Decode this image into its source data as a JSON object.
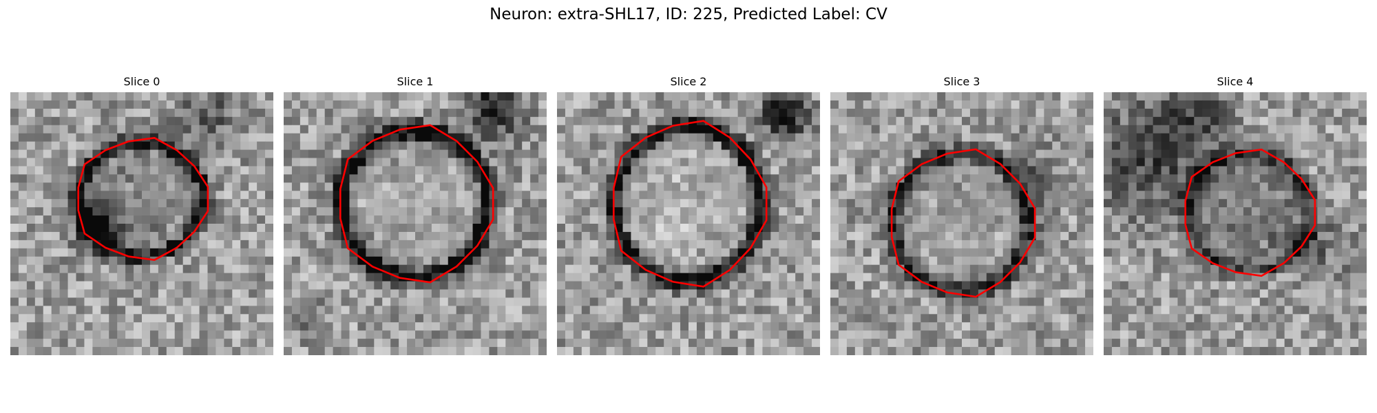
{
  "figure": {
    "title": "Neuron: extra-SHL17, ID: 225, Predicted Label: CV",
    "contour_color": "#ff0000",
    "colormap": "grayscale",
    "panels": [
      {
        "label": "Slice 0",
        "dark_ring_strength": 0.55,
        "interior_brightness": 0.45
      },
      {
        "label": "Slice 1",
        "dark_ring_strength": 0.65,
        "interior_brightness": 0.65
      },
      {
        "label": "Slice 2",
        "dark_ring_strength": 0.55,
        "interior_brightness": 0.75
      },
      {
        "label": "Slice 3",
        "dark_ring_strength": 0.5,
        "interior_brightness": 0.6
      },
      {
        "label": "Slice 4",
        "dark_ring_strength": 0.4,
        "interior_brightness": 0.35
      }
    ]
  }
}
